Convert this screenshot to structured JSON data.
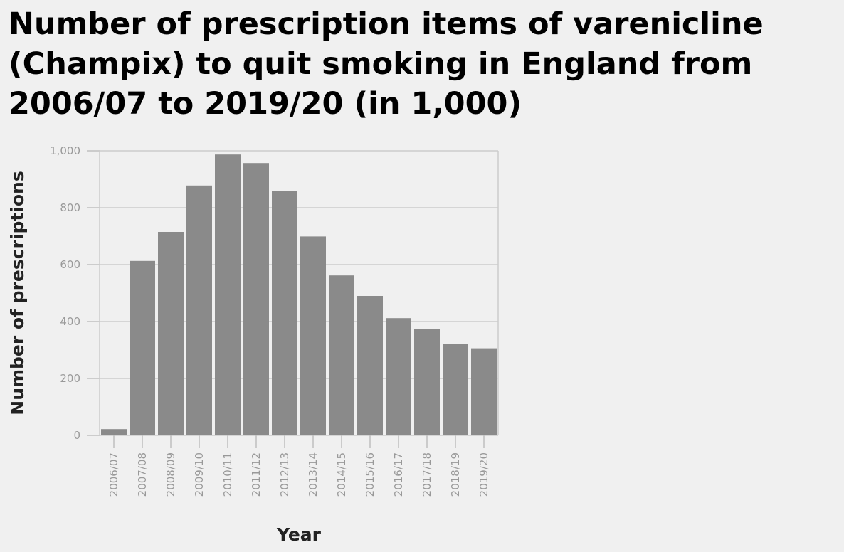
{
  "chart_data": {
    "type": "bar",
    "title": "Number of prescription items of varenicline (Champix) to quit smoking in England from 2006/07 to 2019/20 (in 1,000)",
    "xlabel": "Year",
    "ylabel": "Number of prescriptions",
    "categories": [
      "2006/07",
      "2007/08",
      "2008/09",
      "2009/10",
      "2010/11",
      "2011/12",
      "2012/13",
      "2013/14",
      "2014/15",
      "2015/16",
      "2016/17",
      "2017/18",
      "2018/19",
      "2019/20"
    ],
    "values": [
      22,
      613,
      715,
      878,
      987,
      957,
      859,
      699,
      562,
      490,
      412,
      374,
      320,
      306
    ],
    "ylim": [
      0,
      1000
    ],
    "yticks": [
      0,
      200,
      400,
      600,
      800,
      1000
    ],
    "ytick_labels": [
      "0",
      "200",
      "400",
      "600",
      "800",
      "1,000"
    ],
    "grid": true,
    "bar_color": "#8a8a8a",
    "background": "#f0f0f0"
  }
}
